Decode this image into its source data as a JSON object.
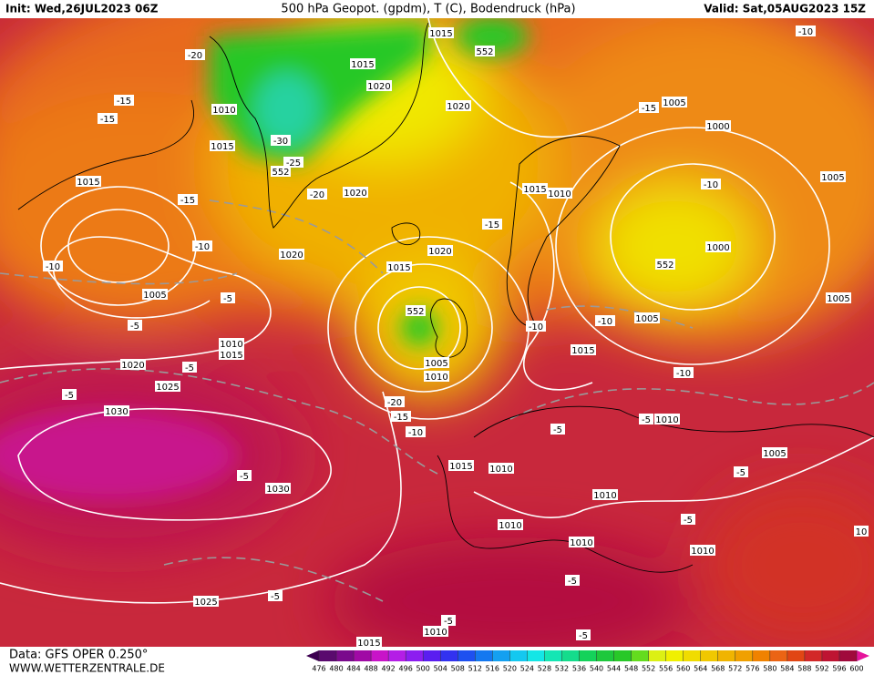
{
  "header": {
    "init": "Init: Wed,26JUL2023 06Z",
    "title": "500 hPa Geopot. (gpdm), T (C), Bodendruck (hPa)",
    "valid": "Valid: Sat,05AUG2023 15Z"
  },
  "footer": {
    "data": "Data: GFS OPER 0.250°",
    "site": "WWW.WETTERZENTRALE.DE"
  },
  "colorbar": {
    "levels": [
      476,
      480,
      484,
      488,
      492,
      496,
      500,
      504,
      508,
      512,
      516,
      520,
      524,
      528,
      532,
      536,
      540,
      544,
      548,
      552,
      556,
      560,
      564,
      568,
      572,
      576,
      580,
      584,
      588,
      592,
      596,
      600
    ],
    "colors": [
      "#3c0050",
      "#5a0a6e",
      "#7a0a8c",
      "#a00aa5",
      "#c814c8",
      "#b41ee6",
      "#8c1ef0",
      "#5a1ef0",
      "#3232f0",
      "#1e50f0",
      "#1478f0",
      "#14a0f0",
      "#14c8f0",
      "#14e6e6",
      "#14e6b4",
      "#14dc8c",
      "#14d25a",
      "#1ec83c",
      "#28c828",
      "#64dc1e",
      "#dcf014",
      "#f0f000",
      "#f0dc00",
      "#f0c800",
      "#f0b400",
      "#f0a000",
      "#f08200",
      "#eb6414",
      "#e14614",
      "#d22828",
      "#be1432",
      "#a00a3c",
      "#e6149b"
    ]
  },
  "labels": [
    "1015",
    "1015",
    "-20",
    "1020",
    "1020",
    "1010",
    "1015",
    "-30",
    "-25",
    "552",
    "-20",
    "1020",
    "1015",
    "-15",
    "-15",
    "-15",
    "-10",
    "-10",
    "1020",
    "1005",
    "-5",
    "-5",
    "1010",
    "1015",
    "1020",
    "-5",
    "1025",
    "-5",
    "1030",
    "-5",
    "1030",
    "1025",
    "-5",
    "1015",
    "1010",
    "-5",
    "1015",
    "1020",
    "-15",
    "552",
    "1005",
    "1010",
    "-20",
    "-15",
    "-10",
    "1015",
    "1010",
    "1010",
    "1010",
    "-5",
    "-5",
    "-5",
    "1015",
    "1010",
    "1005",
    "-15",
    "1000",
    "-10",
    "1000",
    "552",
    "1005",
    "-10",
    "1005",
    "-10",
    "-10",
    "1005",
    "1015",
    "-10",
    "-5",
    "1010",
    "1005",
    "-5",
    "1010",
    "-5",
    "1010",
    "10",
    "552"
  ]
}
